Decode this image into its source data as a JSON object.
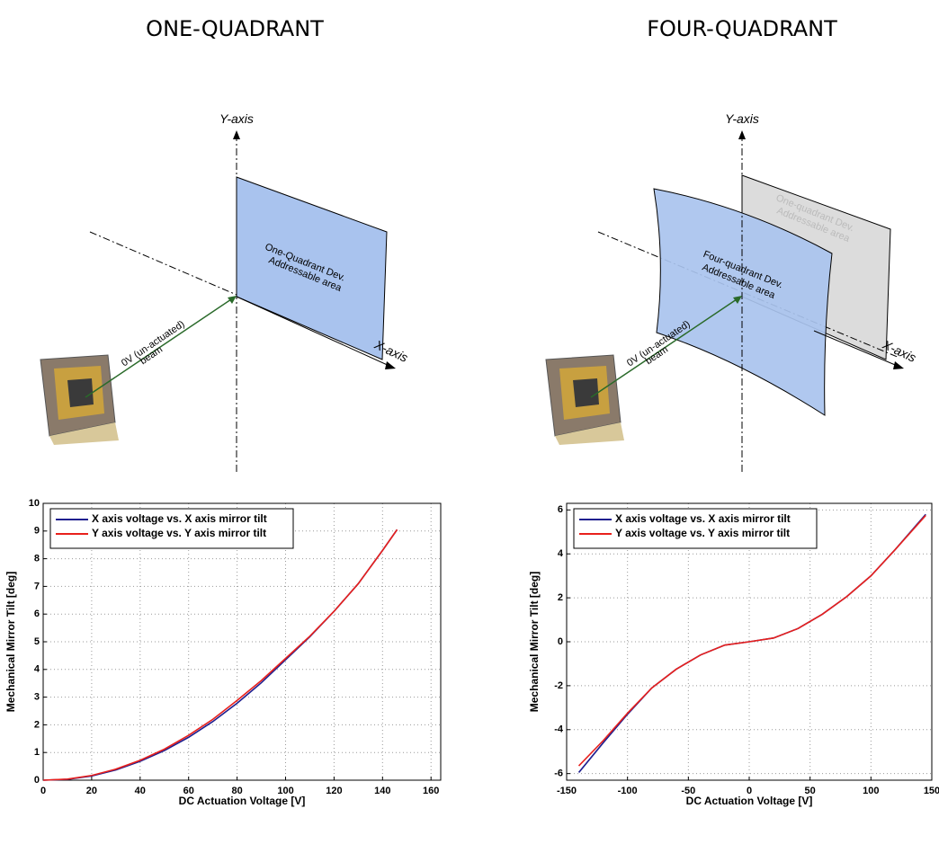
{
  "headings": [
    "ONE-QUADRANT",
    "FOUR-QUADRANT"
  ],
  "diagrams": [
    {
      "y_axis": "Y-axis",
      "x_axis": "X-axis",
      "area": [
        "One-Quadrant Dev.",
        "Addressable area"
      ],
      "beam": [
        "0V (un-actuated)",
        "beam"
      ]
    },
    {
      "y_axis": "Y-axis",
      "x_axis": "X-axis",
      "ghost_area": [
        "One-quadrant Dev.",
        "Addressable area"
      ],
      "area": [
        "Four-quadrant Dev.",
        "Addressable area"
      ],
      "beam": [
        "0V (un-actuated)",
        "beam"
      ]
    }
  ],
  "chart_data": [
    {
      "type": "line",
      "xlabel": "DC Actuation Voltage [V]",
      "ylabel": "Mechanical Mirror Tilt [deg]",
      "x": [
        0,
        10,
        20,
        30,
        40,
        50,
        60,
        70,
        80,
        90,
        100,
        110,
        120,
        130,
        140,
        146
      ],
      "series": [
        {
          "name": "X axis voltage vs. X axis mirror tilt",
          "color": "#1f1f8f",
          "values": [
            0,
            0.03,
            0.15,
            0.37,
            0.68,
            1.07,
            1.55,
            2.12,
            2.78,
            3.52,
            4.35,
            5.18,
            6.1,
            7.1,
            8.3,
            9.05
          ]
        },
        {
          "name": "Y axis voltage vs. Y axis mirror tilt",
          "color": "#e8201c",
          "values": [
            0,
            0.04,
            0.17,
            0.4,
            0.72,
            1.12,
            1.62,
            2.2,
            2.88,
            3.6,
            4.4,
            5.2,
            6.1,
            7.1,
            8.3,
            9.05
          ]
        }
      ],
      "xlim": [
        0,
        164
      ],
      "xticks": [
        0,
        20,
        40,
        60,
        80,
        100,
        120,
        140,
        160
      ],
      "ylim": [
        0,
        10
      ],
      "yticks": [
        0,
        1,
        2,
        3,
        4,
        5,
        6,
        7,
        8,
        9,
        10
      ],
      "grid": true,
      "legend": "upper-left"
    },
    {
      "type": "line",
      "xlabel": "DC Actuation Voltage [V]",
      "ylabel": "Mechanical Mirror Tilt [deg]",
      "x": [
        -140,
        -120,
        -100,
        -80,
        -60,
        -40,
        -20,
        0,
        20,
        40,
        60,
        80,
        100,
        120,
        145
      ],
      "series": [
        {
          "name": "X axis voltage vs. X axis mirror tilt",
          "color": "#1f1f8f",
          "values": [
            -5.95,
            -4.6,
            -3.3,
            -2.1,
            -1.25,
            -0.6,
            -0.15,
            0,
            0.17,
            0.6,
            1.25,
            2.05,
            3.0,
            4.2,
            5.8
          ]
        },
        {
          "name": "Y axis voltage vs. Y axis mirror tilt",
          "color": "#e8201c",
          "values": [
            -5.65,
            -4.5,
            -3.25,
            -2.1,
            -1.25,
            -0.6,
            -0.15,
            0,
            0.17,
            0.6,
            1.25,
            2.05,
            3.0,
            4.2,
            5.75
          ]
        }
      ],
      "xlim": [
        -150,
        150
      ],
      "xticks": [
        -150,
        -100,
        -50,
        0,
        50,
        100,
        150
      ],
      "ylim": [
        -6.3,
        6.3
      ],
      "yticks": [
        -6,
        -4,
        -2,
        0,
        2,
        4,
        6
      ],
      "grid": true,
      "legend": "upper-left"
    }
  ]
}
